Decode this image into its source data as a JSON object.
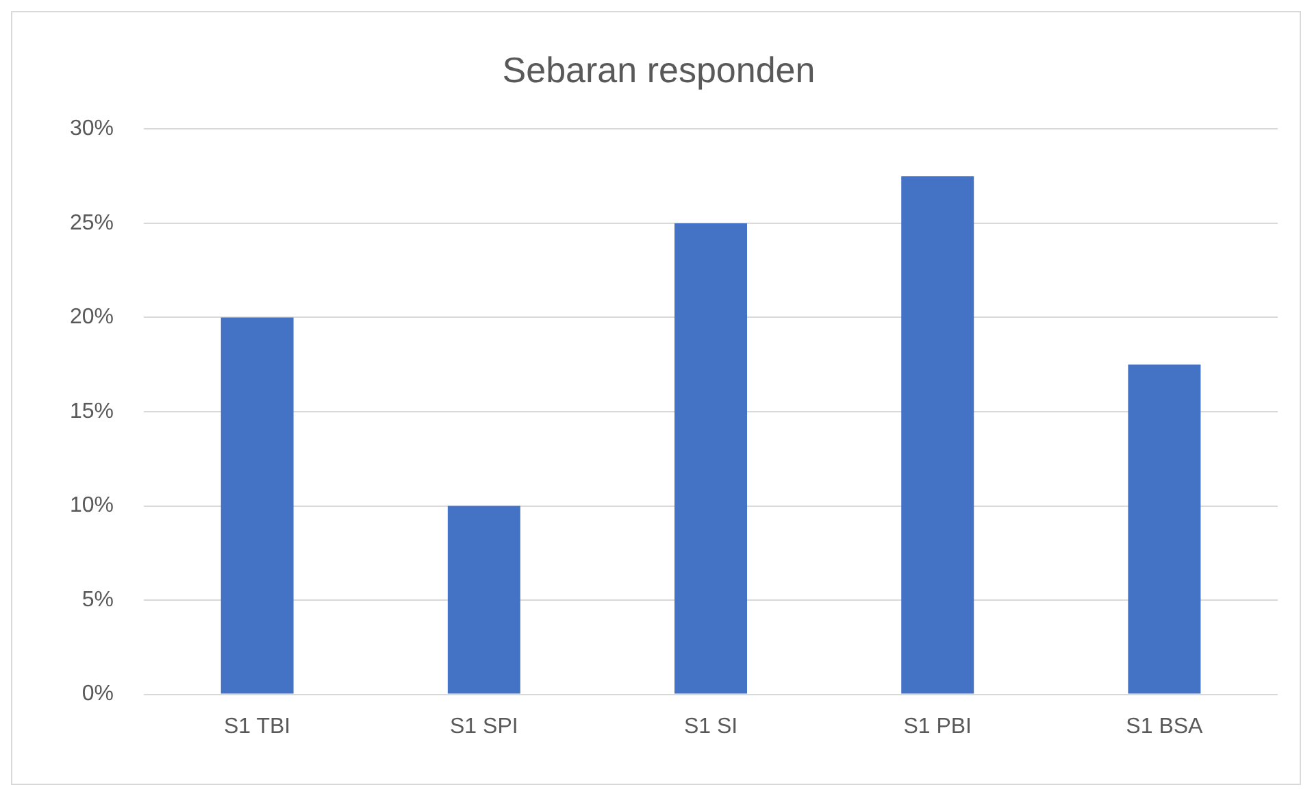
{
  "chart_data": {
    "type": "bar",
    "title": "Sebaran responden",
    "categories": [
      "S1 TBI",
      "S1 SPI",
      "S1 SI",
      "S1 PBI",
      "S1 BSA"
    ],
    "values": [
      20,
      10,
      25,
      27.5,
      17.5
    ],
    "color": "#4472c4",
    "ylim": [
      0,
      30
    ],
    "yticks": [
      {
        "value": 0,
        "label": "0%"
      },
      {
        "value": 5,
        "label": "5%"
      },
      {
        "value": 10,
        "label": "10%"
      },
      {
        "value": 15,
        "label": "15%"
      },
      {
        "value": 20,
        "label": "20%"
      },
      {
        "value": 25,
        "label": "25%"
      },
      {
        "value": 30,
        "label": "30%"
      }
    ],
    "grid": "y",
    "legend": false
  }
}
